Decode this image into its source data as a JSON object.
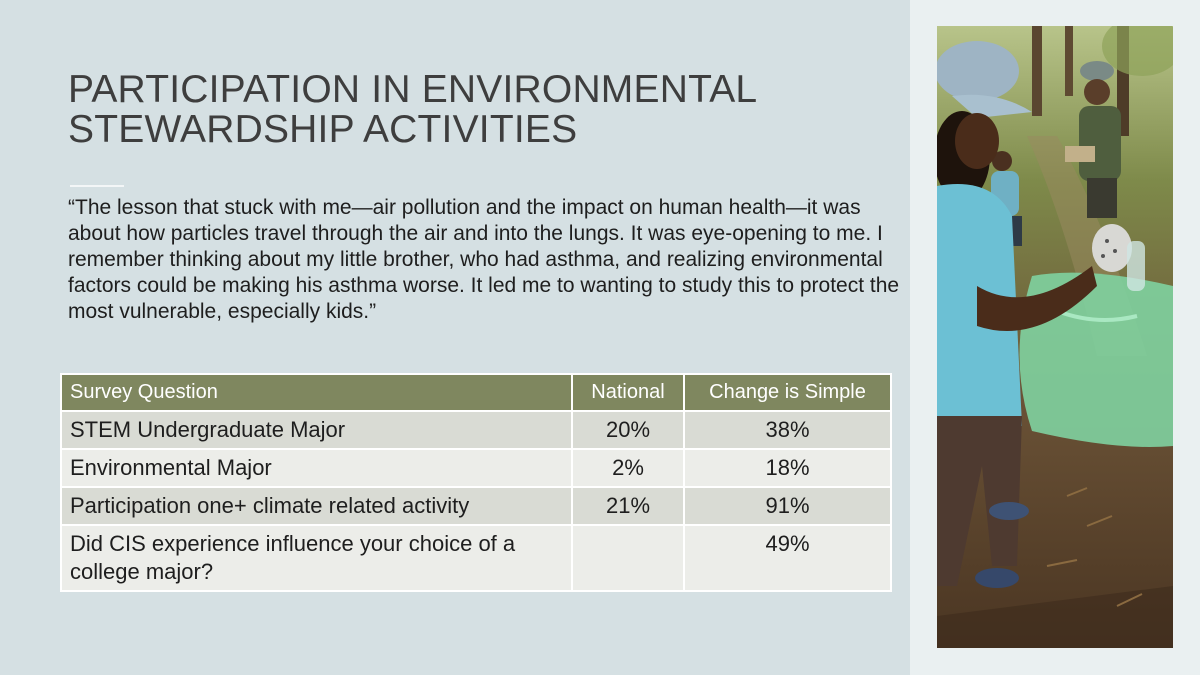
{
  "slide": {
    "title_line1": "PARTICIPATION IN ENVIRONMENTAL",
    "title_line2": "STEWARDSHIP ACTIVITIES",
    "quote": "“The lesson that stuck with me—air pollution and the impact on human health—it was about how particles travel through the air and into the lungs. It was eye-opening to me. I remember thinking about my little brother, who had asthma, and realizing environmental factors could be making his asthma worse. It led me to wanting to study this to protect the most vulnerable, especially kids.”"
  },
  "table": {
    "headers": [
      "Survey Question",
      "National",
      "Change is Simple"
    ],
    "rows": [
      {
        "question": "STEM Undergraduate Major",
        "national": "20%",
        "cis": "38%"
      },
      {
        "question": "Environmental Major",
        "national": "2%",
        "cis": "18%"
      },
      {
        "question": "Participation one+ climate related activity",
        "national": "21%",
        "cis": "91%"
      },
      {
        "question": "Did CIS experience influence your choice of a college major?",
        "national": "",
        "cis": "49%"
      }
    ]
  },
  "colors": {
    "background": "#d5e0e3",
    "header_fill": "#7f875f",
    "row_odd": "#d9dbd4",
    "row_even": "#ecede9"
  }
}
